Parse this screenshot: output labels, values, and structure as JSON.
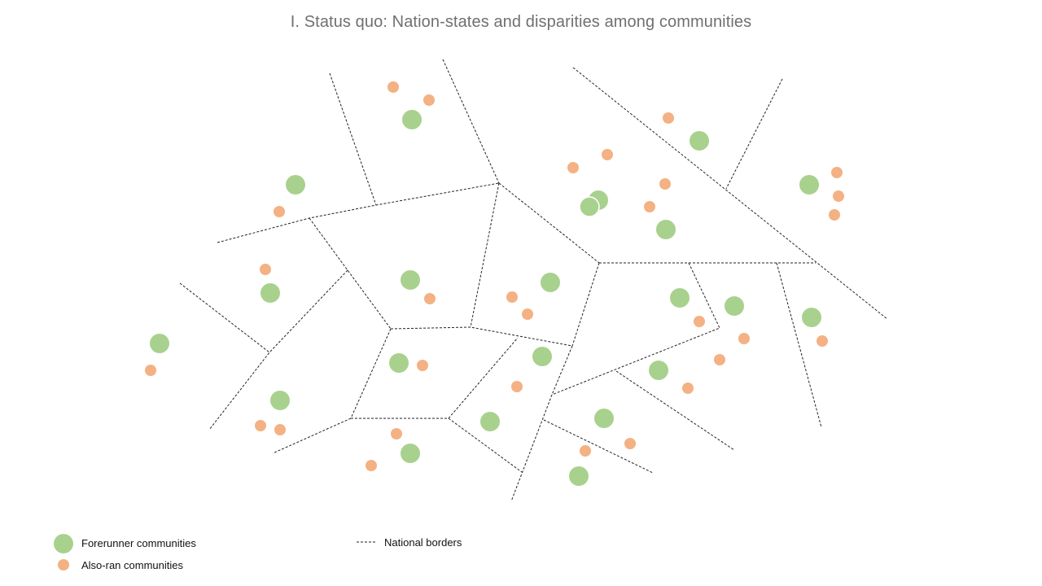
{
  "title": "I. Status quo: Nation-states and disparities among communities",
  "legend": {
    "forerunner_label": "Forerunner communities",
    "alsoran_label": "Also-ran communities",
    "borders_label": "National borders"
  },
  "colors": {
    "forerunner": "#a9d18e",
    "alsoran": "#f4b183",
    "border": "#222222",
    "title": "#707070"
  }
}
